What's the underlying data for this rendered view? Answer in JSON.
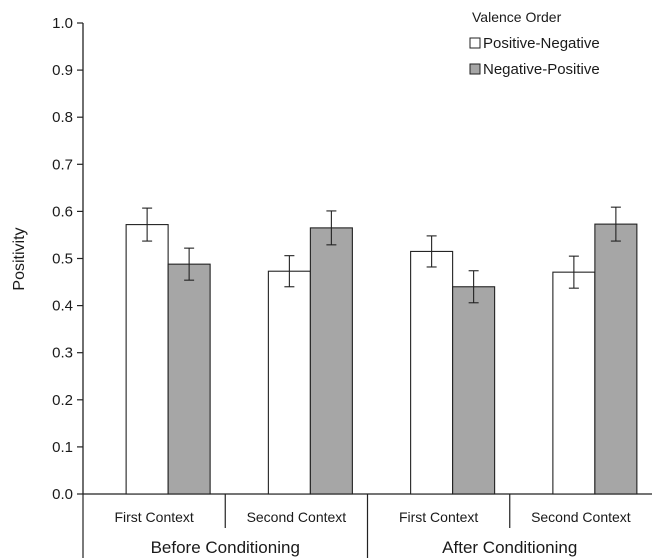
{
  "chart_data": {
    "type": "bar",
    "title": "",
    "xlabel": "",
    "ylabel": "Positivity",
    "ylim": [
      0,
      1.0
    ],
    "yticks": [
      "0.0",
      "0.1",
      "0.2",
      "0.3",
      "0.4",
      "0.5",
      "0.6",
      "0.7",
      "0.8",
      "0.9",
      "1.0"
    ],
    "categories": [
      "First Context",
      "Second Context",
      "First Context",
      "Second Context"
    ],
    "groups": [
      "Before Conditioning",
      "After Conditioning"
    ],
    "legend_title": "Valence Order",
    "legend_position": "top-right",
    "grid": false,
    "series": [
      {
        "name": "Positive-Negative",
        "color": "#ffffff",
        "values": [
          0.572,
          0.473,
          0.515,
          0.471
        ],
        "errors": [
          0.035,
          0.033,
          0.033,
          0.034
        ]
      },
      {
        "name": "Negative-Positive",
        "color": "#a6a6a6",
        "values": [
          0.488,
          0.565,
          0.44,
          0.573
        ],
        "errors": [
          0.034,
          0.036,
          0.034,
          0.036
        ]
      }
    ]
  }
}
